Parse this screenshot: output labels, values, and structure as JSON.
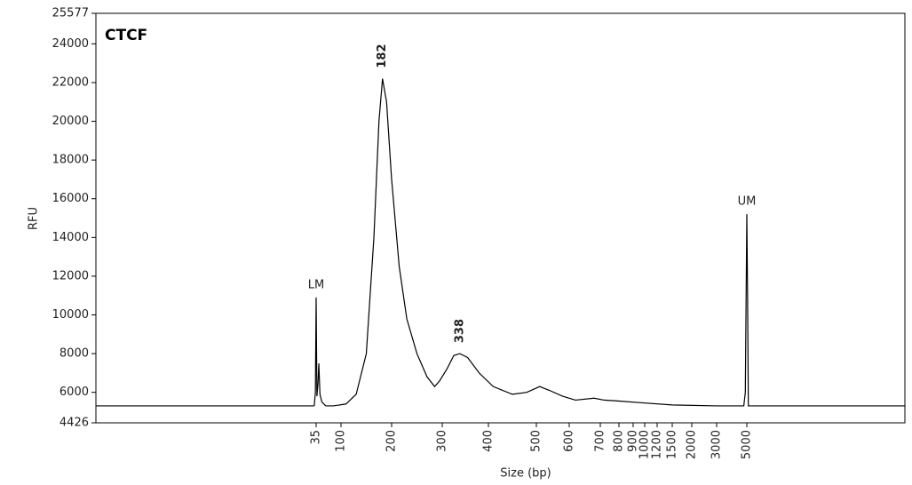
{
  "chart_data": {
    "type": "line",
    "title": "CTCF",
    "x_label": "Size (bp)",
    "y_label": "RFU",
    "x": [
      30,
      33,
      35,
      37,
      40,
      42,
      45,
      50,
      60,
      80,
      110,
      130,
      150,
      165,
      175,
      182,
      190,
      200,
      215,
      230,
      250,
      270,
      285,
      295,
      310,
      325,
      338,
      355,
      380,
      410,
      450,
      480,
      510,
      540,
      580,
      620,
      680,
      720,
      800,
      1000,
      1500,
      3000,
      4800,
      4900,
      5000,
      5050,
      5100,
      5300
    ],
    "values": [
      5300,
      6000,
      10900,
      5800,
      6500,
      7500,
      5900,
      5500,
      5300,
      5300,
      5400,
      5900,
      8000,
      14000,
      20000,
      22200,
      21000,
      17000,
      12500,
      9800,
      8000,
      6800,
      6300,
      6600,
      7200,
      7900,
      8000,
      7800,
      7000,
      6300,
      5900,
      6000,
      6300,
      6100,
      5800,
      5600,
      5700,
      5600,
      5550,
      5450,
      5350,
      5300,
      5300,
      6000,
      15200,
      11000,
      5300,
      5300
    ],
    "color": "#000000",
    "ylim": [
      4426,
      25577
    ],
    "yticks": [
      4426,
      6000,
      8000,
      10000,
      12000,
      14000,
      16000,
      18000,
      20000,
      22000,
      24000,
      25577
    ],
    "xticks": [
      35,
      100,
      200,
      300,
      400,
      500,
      600,
      700,
      800,
      900,
      1000,
      1200,
      1500,
      2000,
      3000,
      5000
    ],
    "annotations": [
      {
        "text": "LM",
        "x": 35,
        "color": "#d42020",
        "rotated": false
      },
      {
        "text": "182",
        "x": 182,
        "color": "#2b2f8f",
        "rotated": true
      },
      {
        "text": "338",
        "x": 338,
        "color": "#2b2f8f",
        "rotated": true
      },
      {
        "text": "UM",
        "x": 5000,
        "color": "#d42020",
        "rotated": false
      }
    ]
  }
}
